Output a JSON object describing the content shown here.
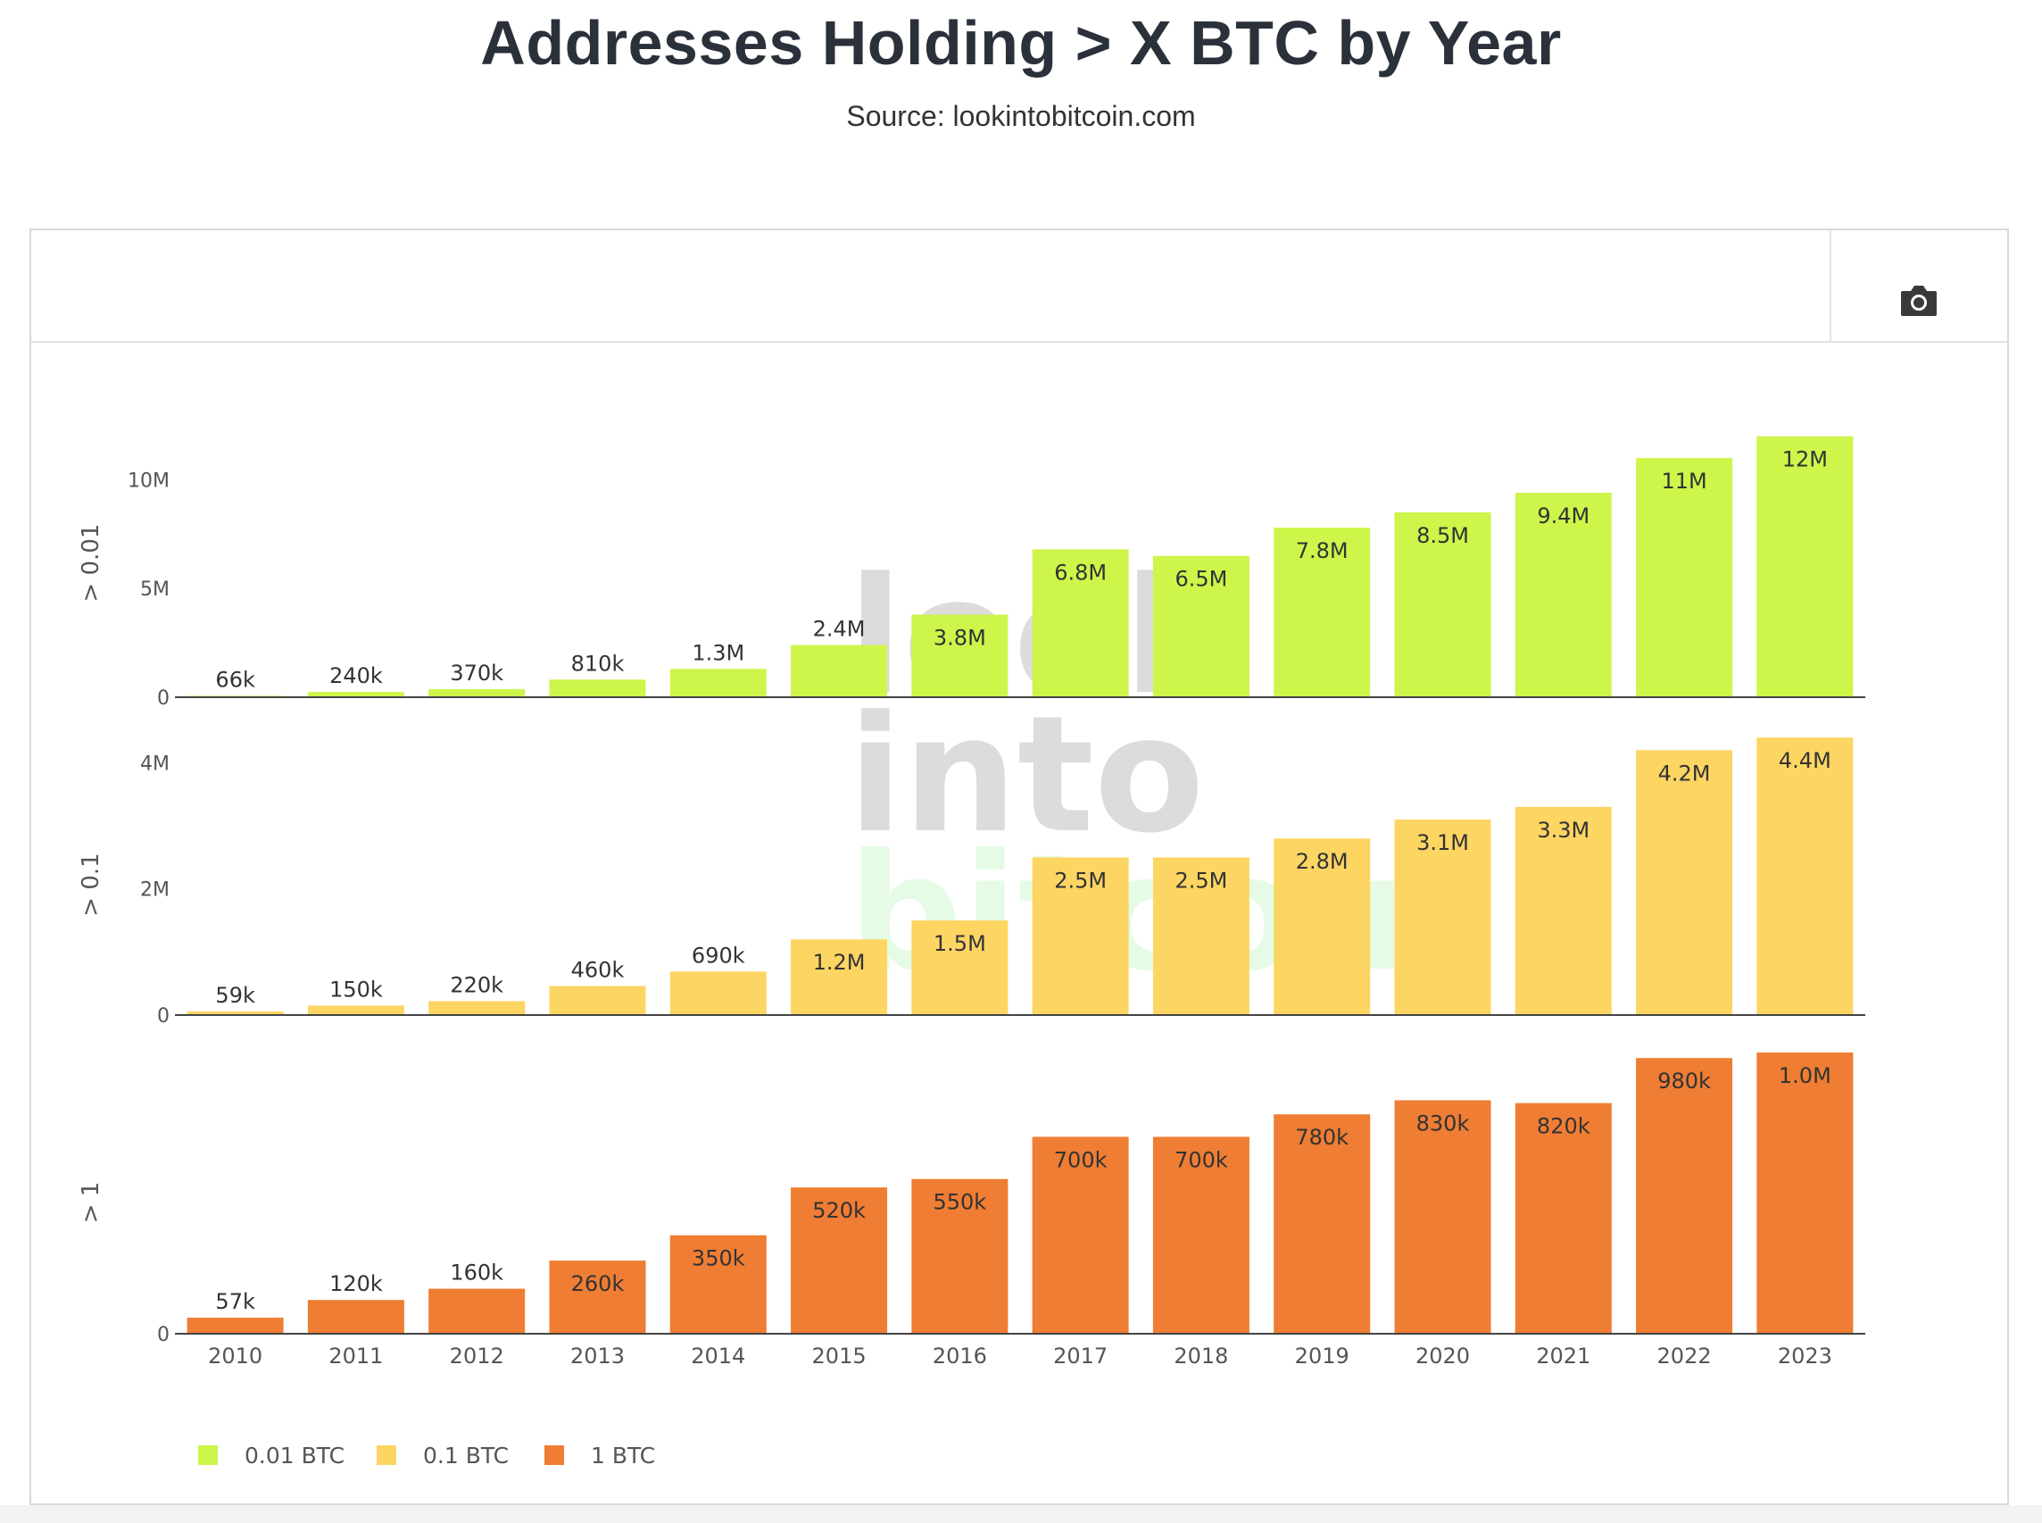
{
  "page": {
    "title": "Addresses Holding > X BTC by Year",
    "subtitle": "Source: lookintobitcoin.com"
  },
  "toolbar": {
    "camera_icon": "camera-icon"
  },
  "watermark": {
    "lines": [
      "look",
      "into",
      "bitcoin"
    ]
  },
  "colors": {
    "series_0_01": "#cdf54a",
    "series_0_1": "#fdd563",
    "series_1": "#ef7d33",
    "axis_text": "#555555",
    "data_label": "#333333"
  },
  "chart_data": {
    "type": "bar",
    "categories": [
      "2010",
      "2011",
      "2012",
      "2013",
      "2014",
      "2015",
      "2016",
      "2017",
      "2018",
      "2019",
      "2020",
      "2021",
      "2022",
      "2023"
    ],
    "series": [
      {
        "name": "0.01 BTC",
        "axis_label": "> 0.01",
        "values": [
          66000,
          240000,
          370000,
          810000,
          1300000,
          2400000,
          3800000,
          6800000,
          6500000,
          7800000,
          8500000,
          9400000,
          11000000,
          12000000
        ],
        "labels": [
          "66k",
          "240k",
          "370k",
          "810k",
          "1.3M",
          "2.4M",
          "3.8M",
          "6.8M",
          "6.5M",
          "7.8M",
          "8.5M",
          "9.4M",
          "11M",
          "12M"
        ],
        "ylim": [
          0,
          14000000
        ],
        "yticks": [
          0,
          5000000,
          10000000
        ],
        "yticklabels": [
          "0",
          "5M",
          "10M"
        ]
      },
      {
        "name": "0.1 BTC",
        "axis_label": "> 0.1",
        "values": [
          59000,
          150000,
          220000,
          460000,
          690000,
          1200000,
          1500000,
          2500000,
          2500000,
          2800000,
          3100000,
          3300000,
          4200000,
          4400000
        ],
        "labels": [
          "59k",
          "150k",
          "220k",
          "460k",
          "690k",
          "1.2M",
          "1.5M",
          "2.5M",
          "2.5M",
          "2.8M",
          "3.1M",
          "3.3M",
          "4.2M",
          "4.4M"
        ],
        "ylim": [
          0,
          4700000
        ],
        "yticks": [
          0,
          2000000,
          4000000
        ],
        "yticklabels": [
          "0",
          "2M",
          "4M"
        ]
      },
      {
        "name": "1 BTC",
        "axis_label": "> 1",
        "values": [
          57000,
          120000,
          160000,
          260000,
          350000,
          520000,
          550000,
          700000,
          700000,
          780000,
          830000,
          820000,
          980000,
          1000000
        ],
        "labels": [
          "57k",
          "120k",
          "160k",
          "260k",
          "350k",
          "520k",
          "550k",
          "700k",
          "700k",
          "780k",
          "830k",
          "820k",
          "980k",
          "1.0M"
        ],
        "ylim": [
          0,
          1060000
        ],
        "yticks": [
          0
        ],
        "yticklabels": [
          "0"
        ]
      }
    ],
    "legend": {
      "position": "bottom-left",
      "entries": [
        "0.01 BTC",
        "0.1 BTC",
        "1 BTC"
      ]
    },
    "grid": false
  }
}
